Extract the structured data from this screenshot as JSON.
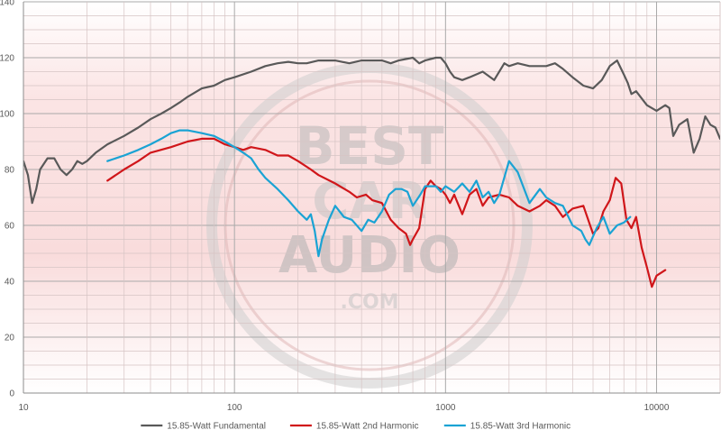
{
  "chart_data": {
    "type": "line",
    "title": "",
    "xlabel": "",
    "ylabel": "",
    "x_scale": "log",
    "xlim": [
      10,
      20000
    ],
    "ylim": [
      0,
      140
    ],
    "grid": true,
    "legend_position": "bottom",
    "x_ticks": [
      10,
      100,
      1000,
      10000
    ],
    "x_tick_labels": [
      "10",
      "100",
      "1000",
      "10000"
    ],
    "y_ticks": [
      0,
      20,
      40,
      60,
      80,
      100,
      120,
      140
    ],
    "y_tick_labels": [
      "0",
      "20",
      "40",
      "60",
      "80",
      "100",
      "120",
      "140"
    ],
    "watermark": {
      "line1": "BEST",
      "line2": "CAR",
      "line3": "AUDIO",
      "line4": ".COM"
    },
    "series": [
      {
        "name": "15.85-Watt Fundamental",
        "color": "#595959",
        "points": [
          [
            10,
            83
          ],
          [
            10.5,
            78
          ],
          [
            11,
            68
          ],
          [
            11.5,
            73
          ],
          [
            12,
            80
          ],
          [
            13,
            84
          ],
          [
            14,
            84
          ],
          [
            15,
            80
          ],
          [
            16,
            78
          ],
          [
            17,
            80
          ],
          [
            18,
            83
          ],
          [
            19,
            82
          ],
          [
            20,
            83
          ],
          [
            22,
            86
          ],
          [
            25,
            89
          ],
          [
            30,
            92
          ],
          [
            35,
            95
          ],
          [
            40,
            98
          ],
          [
            45,
            100
          ],
          [
            50,
            102
          ],
          [
            55,
            104
          ],
          [
            60,
            106
          ],
          [
            70,
            109
          ],
          [
            80,
            110
          ],
          [
            90,
            112
          ],
          [
            100,
            113
          ],
          [
            120,
            115
          ],
          [
            140,
            117
          ],
          [
            160,
            118
          ],
          [
            180,
            118.5
          ],
          [
            200,
            118
          ],
          [
            220,
            118
          ],
          [
            250,
            119
          ],
          [
            300,
            119
          ],
          [
            350,
            118
          ],
          [
            400,
            119
          ],
          [
            450,
            119
          ],
          [
            500,
            119
          ],
          [
            550,
            118
          ],
          [
            600,
            119
          ],
          [
            700,
            120
          ],
          [
            750,
            118
          ],
          [
            800,
            119
          ],
          [
            900,
            120
          ],
          [
            950,
            120
          ],
          [
            1000,
            118
          ],
          [
            1050,
            115
          ],
          [
            1100,
            113
          ],
          [
            1200,
            112
          ],
          [
            1300,
            113
          ],
          [
            1500,
            115
          ],
          [
            1700,
            112
          ],
          [
            1900,
            118
          ],
          [
            2000,
            117
          ],
          [
            2200,
            118
          ],
          [
            2500,
            117
          ],
          [
            3000,
            117
          ],
          [
            3300,
            118
          ],
          [
            3600,
            116
          ],
          [
            4000,
            113
          ],
          [
            4500,
            110
          ],
          [
            5000,
            109
          ],
          [
            5500,
            112
          ],
          [
            6000,
            117
          ],
          [
            6500,
            119
          ],
          [
            7000,
            114
          ],
          [
            7300,
            111
          ],
          [
            7600,
            107
          ],
          [
            8000,
            108
          ],
          [
            9000,
            103
          ],
          [
            10000,
            101
          ],
          [
            11000,
            103
          ],
          [
            11500,
            102
          ],
          [
            12000,
            92
          ],
          [
            12800,
            96
          ],
          [
            14000,
            98
          ],
          [
            15000,
            86
          ],
          [
            16000,
            91
          ],
          [
            17000,
            99
          ],
          [
            18000,
            96
          ],
          [
            19000,
            95
          ],
          [
            20000,
            91
          ]
        ]
      },
      {
        "name": "15.85-Watt 2nd Harmonic",
        "color": "#d0161a",
        "points": [
          [
            25,
            76
          ],
          [
            30,
            80
          ],
          [
            35,
            83
          ],
          [
            40,
            86
          ],
          [
            50,
            88
          ],
          [
            60,
            90
          ],
          [
            70,
            91
          ],
          [
            80,
            91
          ],
          [
            90,
            89
          ],
          [
            100,
            88
          ],
          [
            110,
            87
          ],
          [
            120,
            88
          ],
          [
            140,
            87
          ],
          [
            160,
            85
          ],
          [
            180,
            85
          ],
          [
            200,
            83
          ],
          [
            230,
            80
          ],
          [
            250,
            78
          ],
          [
            300,
            75
          ],
          [
            350,
            72
          ],
          [
            380,
            70
          ],
          [
            420,
            71
          ],
          [
            450,
            69
          ],
          [
            500,
            68
          ],
          [
            550,
            62
          ],
          [
            600,
            59
          ],
          [
            650,
            57
          ],
          [
            680,
            53
          ],
          [
            700,
            55
          ],
          [
            750,
            59
          ],
          [
            800,
            73
          ],
          [
            850,
            76
          ],
          [
            900,
            74
          ],
          [
            950,
            73
          ],
          [
            1000,
            71
          ],
          [
            1050,
            68
          ],
          [
            1100,
            71
          ],
          [
            1200,
            64
          ],
          [
            1300,
            71
          ],
          [
            1400,
            73
          ],
          [
            1500,
            67
          ],
          [
            1600,
            70
          ],
          [
            1800,
            71
          ],
          [
            2000,
            70
          ],
          [
            2200,
            67
          ],
          [
            2500,
            65
          ],
          [
            2800,
            67
          ],
          [
            3000,
            69
          ],
          [
            3300,
            67
          ],
          [
            3600,
            63
          ],
          [
            4000,
            66
          ],
          [
            4500,
            67
          ],
          [
            5000,
            57
          ],
          [
            5300,
            59
          ],
          [
            5600,
            65
          ],
          [
            6000,
            69
          ],
          [
            6400,
            77
          ],
          [
            6800,
            75
          ],
          [
            7200,
            62
          ],
          [
            7600,
            59
          ],
          [
            8000,
            63
          ],
          [
            8500,
            52
          ],
          [
            9000,
            45
          ],
          [
            9500,
            38
          ],
          [
            10000,
            42
          ],
          [
            11000,
            44
          ]
        ]
      },
      {
        "name": "15.85-Watt 3rd Harmonic",
        "color": "#1aa3d4",
        "points": [
          [
            25,
            83
          ],
          [
            30,
            85
          ],
          [
            35,
            87
          ],
          [
            40,
            89
          ],
          [
            45,
            91
          ],
          [
            50,
            93
          ],
          [
            55,
            94
          ],
          [
            60,
            94
          ],
          [
            70,
            93
          ],
          [
            80,
            92
          ],
          [
            90,
            90
          ],
          [
            100,
            88
          ],
          [
            110,
            86
          ],
          [
            120,
            84
          ],
          [
            130,
            80
          ],
          [
            140,
            77
          ],
          [
            160,
            73
          ],
          [
            180,
            69
          ],
          [
            200,
            65
          ],
          [
            220,
            62
          ],
          [
            230,
            64
          ],
          [
            240,
            58
          ],
          [
            250,
            49
          ],
          [
            260,
            55
          ],
          [
            280,
            62
          ],
          [
            300,
            67
          ],
          [
            330,
            63
          ],
          [
            360,
            62
          ],
          [
            400,
            58
          ],
          [
            430,
            62
          ],
          [
            460,
            61
          ],
          [
            500,
            65
          ],
          [
            540,
            71
          ],
          [
            580,
            73
          ],
          [
            620,
            73
          ],
          [
            660,
            72
          ],
          [
            700,
            67
          ],
          [
            760,
            71
          ],
          [
            800,
            74
          ],
          [
            900,
            74
          ],
          [
            950,
            72
          ],
          [
            1000,
            74
          ],
          [
            1100,
            72
          ],
          [
            1200,
            75
          ],
          [
            1300,
            72
          ],
          [
            1400,
            76
          ],
          [
            1500,
            70
          ],
          [
            1600,
            72
          ],
          [
            1700,
            68
          ],
          [
            1800,
            71
          ],
          [
            2000,
            83
          ],
          [
            2200,
            79
          ],
          [
            2500,
            68
          ],
          [
            2800,
            73
          ],
          [
            3000,
            70
          ],
          [
            3300,
            68
          ],
          [
            3600,
            67
          ],
          [
            4000,
            60
          ],
          [
            4400,
            58
          ],
          [
            4600,
            55
          ],
          [
            4800,
            53
          ],
          [
            5200,
            59
          ],
          [
            5600,
            63
          ],
          [
            6000,
            57
          ],
          [
            6500,
            60
          ],
          [
            7000,
            61
          ],
          [
            7500,
            63
          ]
        ]
      }
    ]
  }
}
